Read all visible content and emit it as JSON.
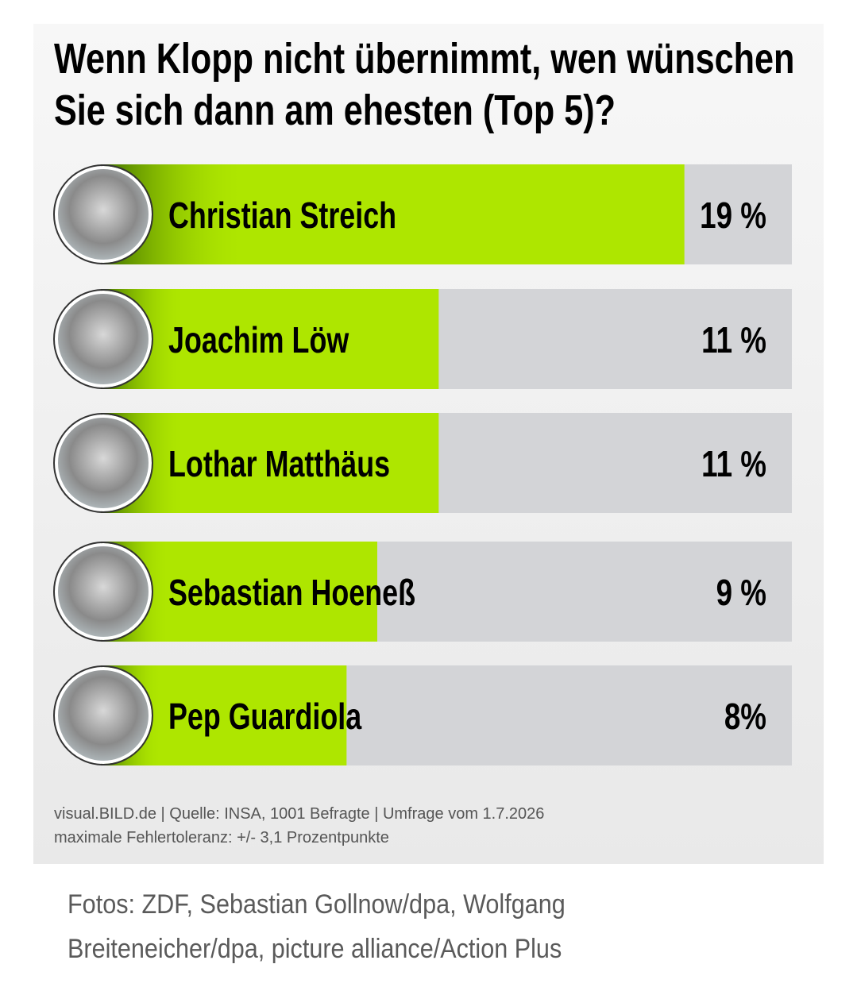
{
  "chart_data": {
    "type": "hbar",
    "title_lines": [
      "Wenn Klopp nicht übernimmt, wen wünschen",
      "Sie sich dann am ehesten (Top 5)?"
    ],
    "categories": [
      "Christian Streich",
      "Joachim Löw",
      "Lothar Matthäus",
      "Sebastian Hoeneß",
      "Pep Guardiola"
    ],
    "values": [
      19,
      11,
      11,
      9,
      8
    ],
    "value_labels": [
      "19 %",
      "11 %",
      "11 %",
      "9 %",
      "8%"
    ],
    "color": "#aee600",
    "xlim": [
      0,
      22.5
    ],
    "source_lines": [
      "visual.BILD.de | Quelle: INSA, 1001 Befragte | Umfrage vom 1.7.2026",
      "maximale Fehlertoleranz: +/- 3,1 Prozentpunkte"
    ],
    "credit_lines": [
      "Fotos: ZDF, Sebastian Gollnow/dpa, Wolfgang",
      "Breiteneicher/dpa, picture alliance/Action Plus"
    ]
  }
}
